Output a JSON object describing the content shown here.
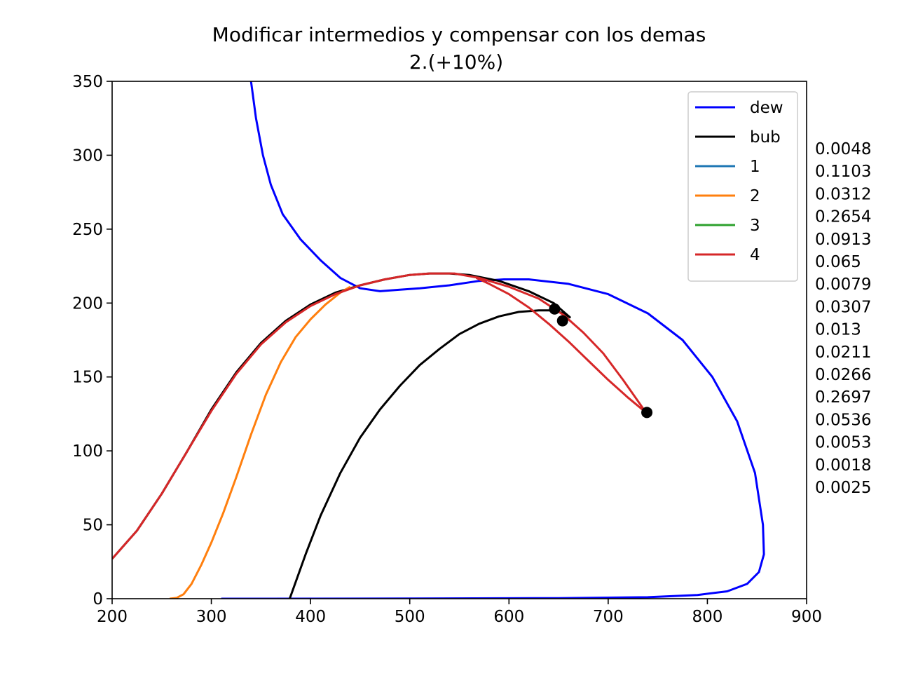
{
  "chart_data": {
    "type": "line",
    "title": "Modificar intermedios y compensar con los demas",
    "subtitle": "2.(+10%)",
    "xlabel": "",
    "ylabel": "",
    "xlim": [
      200,
      900
    ],
    "ylim": [
      0,
      350
    ],
    "xticks": [
      "200",
      "300",
      "400",
      "500",
      "600",
      "700",
      "800",
      "900"
    ],
    "yticks": [
      "0",
      "50",
      "100",
      "150",
      "200",
      "250",
      "300",
      "350"
    ],
    "grid": false,
    "legend_position": "top-right",
    "series": [
      {
        "name": "dew",
        "color": "#0000ff",
        "segments": [
          [
            [
              340,
              350
            ],
            [
              345,
              325
            ],
            [
              352,
              300
            ],
            [
              360,
              280
            ],
            [
              372,
              260
            ],
            [
              390,
              243
            ],
            [
              410,
              229
            ],
            [
              430,
              217
            ],
            [
              450,
              210
            ],
            [
              470,
              208
            ],
            [
              490,
              209
            ],
            [
              510,
              210
            ],
            [
              540,
              212
            ],
            [
              570,
              215
            ],
            [
              595,
              216
            ],
            [
              620,
              216
            ],
            [
              660,
              213
            ],
            [
              700,
              206
            ],
            [
              740,
              193
            ],
            [
              775,
              175
            ],
            [
              805,
              150
            ],
            [
              830,
              120
            ],
            [
              848,
              85
            ],
            [
              856,
              50
            ],
            [
              857,
              30
            ],
            [
              852,
              18
            ],
            [
              840,
              10
            ],
            [
              820,
              5
            ],
            [
              790,
              2.5
            ],
            [
              740,
              1
            ],
            [
              650,
              0.4
            ],
            [
              500,
              0.1
            ],
            [
              310,
              0
            ]
          ]
        ]
      },
      {
        "name": "bub",
        "color": "#000000",
        "segments": [
          [
            [
              200,
              27
            ],
            [
              225,
              46
            ],
            [
              250,
              71
            ],
            [
              275,
              99
            ],
            [
              300,
              128
            ],
            [
              325,
              153
            ],
            [
              350,
              173
            ],
            [
              375,
              188
            ],
            [
              400,
              199
            ],
            [
              425,
              207
            ],
            [
              450,
              212
            ],
            [
              475,
              216
            ],
            [
              500,
              219
            ],
            [
              520,
              220
            ],
            [
              540,
              220
            ],
            [
              560,
              219
            ],
            [
              590,
              215
            ],
            [
              620,
              208
            ],
            [
              645,
              200
            ],
            [
              662,
              190
            ]
          ],
          [
            [
              379,
              0
            ],
            [
              395,
              30
            ],
            [
              410,
              56
            ],
            [
              430,
              85
            ],
            [
              450,
              109
            ],
            [
              470,
              128
            ],
            [
              490,
              144
            ],
            [
              510,
              158
            ],
            [
              530,
              169
            ],
            [
              550,
              179
            ],
            [
              570,
              186
            ],
            [
              590,
              191
            ],
            [
              610,
              194
            ],
            [
              630,
              195
            ],
            [
              645,
              195
            ],
            [
              655,
              193
            ],
            [
              660,
              189
            ]
          ]
        ]
      },
      {
        "name": "1",
        "color": "#1f77b4",
        "segments": []
      },
      {
        "name": "2",
        "color": "#ff7f0e",
        "segments": [
          [
            [
              258,
              0
            ],
            [
              265,
              0.5
            ],
            [
              272,
              3
            ],
            [
              280,
              10
            ],
            [
              290,
              23
            ],
            [
              300,
              38
            ],
            [
              312,
              58
            ],
            [
              325,
              82
            ],
            [
              340,
              111
            ],
            [
              355,
              138
            ],
            [
              370,
              160
            ],
            [
              385,
              177
            ],
            [
              400,
              189
            ],
            [
              415,
              199
            ],
            [
              430,
              207
            ],
            [
              440,
              211
            ]
          ]
        ]
      },
      {
        "name": "3",
        "color": "#2ca02c",
        "segments": []
      },
      {
        "name": "4",
        "color": "#d62728",
        "segments": [
          [
            [
              200,
              27
            ],
            [
              225,
              46
            ],
            [
              250,
              71
            ],
            [
              275,
              99
            ],
            [
              300,
              127
            ],
            [
              325,
              152
            ],
            [
              350,
              172
            ],
            [
              375,
              187
            ],
            [
              400,
              198
            ],
            [
              425,
              206
            ],
            [
              450,
              212
            ],
            [
              475,
              216
            ],
            [
              500,
              219
            ],
            [
              520,
              220
            ],
            [
              545,
              220
            ],
            [
              570,
              217
            ],
            [
              600,
              211
            ],
            [
              630,
              203
            ],
            [
              655,
              192
            ],
            [
              675,
              180
            ],
            [
              695,
              166
            ],
            [
              715,
              148
            ],
            [
              738,
              126
            ]
          ],
          [
            [
              567,
              217
            ],
            [
              580,
              213
            ],
            [
              600,
              206
            ],
            [
              620,
              197
            ],
            [
              640,
              186
            ],
            [
              660,
              174
            ],
            [
              680,
              161
            ],
            [
              700,
              148
            ],
            [
              720,
              136
            ],
            [
              738,
              126
            ]
          ]
        ]
      }
    ],
    "points": [
      [
        646,
        196
      ],
      [
        654,
        188
      ],
      [
        739,
        126
      ]
    ],
    "point_color": "#000000",
    "side_labels": [
      "0.0048",
      "0.1103",
      "0.0312",
      "0.2654",
      "0.0913",
      "0.065",
      "0.0079",
      "0.0307",
      "0.013",
      "0.0211",
      "0.0266",
      "0.2697",
      "0.0536",
      "0.0053",
      "0.0018",
      "0.0025"
    ]
  }
}
